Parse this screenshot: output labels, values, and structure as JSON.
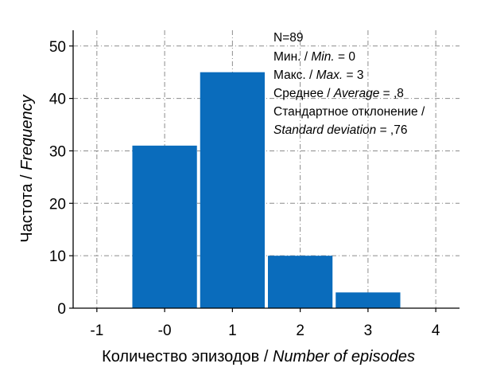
{
  "chart_data": {
    "type": "bar",
    "categories": [
      "-0",
      "1",
      "2",
      "3"
    ],
    "x": [
      0,
      1,
      2,
      3
    ],
    "values": [
      31,
      45,
      10,
      3
    ],
    "xlim": [
      -1.35,
      4.35
    ],
    "ylim": [
      0,
      53
    ],
    "x_ticks": [
      -1,
      0,
      1,
      2,
      3,
      4
    ],
    "x_tick_labels": [
      "-1",
      "-0",
      "1",
      "2",
      "3",
      "4"
    ],
    "y_ticks": [
      0,
      10,
      20,
      30,
      40,
      50
    ],
    "grid": true,
    "bar_color": "#0a6cbc",
    "xlabel": {
      "ru": "Количество эпизодов / ",
      "en": "Number of episodes"
    },
    "ylabel": {
      "ru": "Частота / ",
      "en": "Frequency"
    },
    "stats": {
      "n": "N=89",
      "min": {
        "ru": "Мин. / ",
        "en": "Min.",
        "value": " = 0"
      },
      "max": {
        "ru": "Макс. / ",
        "en": "Max.",
        "value": " = 3"
      },
      "mean": {
        "ru": "Среднее / ",
        "en": "Average",
        "value": " = ,8"
      },
      "sd_line1": "Стандартное отклонение /",
      "sd_line2": {
        "en": "Standard deviation",
        "value": " = ,76"
      }
    }
  }
}
